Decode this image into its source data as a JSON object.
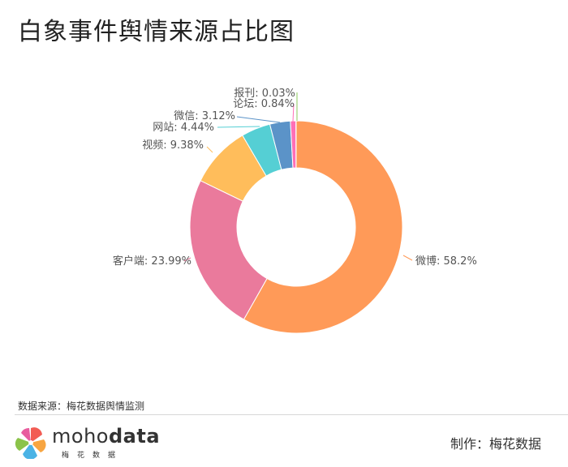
{
  "title": "白象事件舆情来源占比图",
  "source_text": "数据来源：梅花数据舆情监测",
  "brand": {
    "name_light": "moho",
    "name_bold": "data",
    "subtitle": "梅花数据"
  },
  "credit": "制作：梅花数据",
  "chart_data": {
    "type": "pie",
    "donut": true,
    "title": "白象事件舆情来源占比图",
    "slices": [
      {
        "name": "微博",
        "value": 58.2,
        "label": "微博: 58.2%",
        "color": "#FF9A58"
      },
      {
        "name": "客户端",
        "value": 23.99,
        "label": "客户端: 23.99%",
        "color": "#EA7A9C"
      },
      {
        "name": "视频",
        "value": 9.38,
        "label": "视频: 9.38%",
        "color": "#FFBD5B"
      },
      {
        "name": "网站",
        "value": 4.44,
        "label": "网站: 4.44%",
        "color": "#55CFD4"
      },
      {
        "name": "微信",
        "value": 3.12,
        "label": "微信: 3.12%",
        "color": "#5B93C8"
      },
      {
        "name": "论坛",
        "value": 0.84,
        "label": "论坛: 0.84%",
        "color": "#FF6FB6"
      },
      {
        "name": "报刊",
        "value": 0.03,
        "label": "报刊: 0.03%",
        "color": "#8CCB5E"
      }
    ]
  }
}
